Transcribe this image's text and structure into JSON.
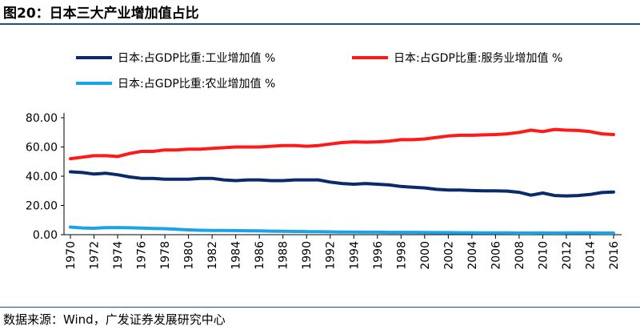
{
  "chart_data": {
    "type": "line",
    "title": "图20：日本三大产业增加值占比",
    "source": "数据来源：Wind，广发证券发展研究中心",
    "xlabel": "",
    "ylabel": "",
    "ylim": [
      0,
      80
    ],
    "yticks": [
      "0.00",
      "20.00",
      "40.00",
      "60.00",
      "80.00"
    ],
    "x": [
      1970,
      1971,
      1972,
      1973,
      1974,
      1975,
      1976,
      1977,
      1978,
      1979,
      1980,
      1981,
      1982,
      1983,
      1984,
      1985,
      1986,
      1987,
      1988,
      1989,
      1990,
      1991,
      1992,
      1993,
      1994,
      1995,
      1996,
      1997,
      1998,
      1999,
      2000,
      2001,
      2002,
      2003,
      2004,
      2005,
      2006,
      2007,
      2008,
      2009,
      2010,
      2011,
      2012,
      2013,
      2014,
      2015,
      2016
    ],
    "xticks": [
      "1970",
      "1972",
      "1974",
      "1976",
      "1978",
      "1980",
      "1982",
      "1984",
      "1986",
      "1988",
      "1990",
      "1992",
      "1994",
      "1996",
      "1998",
      "2000",
      "2002",
      "2004",
      "2006",
      "2008",
      "2010",
      "2012",
      "2014",
      "2016"
    ],
    "grid": false,
    "legend": "top",
    "series": [
      {
        "name": "日本:占GDP比重:工业增加值 %",
        "color": "#0b2a6b",
        "values": [
          43,
          42.5,
          41.5,
          42,
          41,
          39.5,
          38.5,
          38.5,
          38,
          38,
          38,
          38.5,
          38.5,
          37.5,
          37,
          37.5,
          37.5,
          37,
          37,
          37.5,
          37.5,
          37.5,
          36,
          35,
          34.5,
          35,
          34.5,
          34,
          33,
          32.5,
          32,
          31,
          30.5,
          30.5,
          30.2,
          30,
          30,
          29.8,
          29,
          27,
          28.5,
          26.8,
          26.5,
          26.8,
          27.5,
          28.8,
          29.2
        ]
      },
      {
        "name": "日本:占GDP比重:服务业增加值 %",
        "color": "#ff1a1a",
        "values": [
          52,
          53,
          54,
          54,
          53.5,
          55.5,
          57,
          57,
          58,
          58,
          58.5,
          58.5,
          59,
          59.5,
          60,
          60,
          60,
          60.5,
          61,
          61,
          60.5,
          61,
          62,
          63,
          63.5,
          63.3,
          63.5,
          64,
          65,
          65,
          65.5,
          66.5,
          67.5,
          68,
          68,
          68.3,
          68.5,
          69,
          70,
          71.5,
          70.5,
          72,
          71.5,
          71.3,
          70.5,
          69,
          68.5
        ]
      },
      {
        "name": "日本:占GDP比重:农业增加值 %",
        "color": "#1aa3e8",
        "values": [
          5.2,
          4.6,
          4.4,
          4.8,
          4.9,
          4.7,
          4.5,
          4.3,
          4.1,
          3.7,
          3.3,
          3.0,
          2.9,
          2.9,
          2.8,
          2.7,
          2.6,
          2.4,
          2.3,
          2.2,
          2.1,
          2.0,
          1.9,
          1.8,
          1.8,
          1.7,
          1.7,
          1.6,
          1.6,
          1.6,
          1.5,
          1.4,
          1.4,
          1.3,
          1.3,
          1.2,
          1.2,
          1.2,
          1.1,
          1.1,
          1.2,
          1.1,
          1.2,
          1.2,
          1.2,
          1.1,
          1.1
        ]
      }
    ]
  }
}
